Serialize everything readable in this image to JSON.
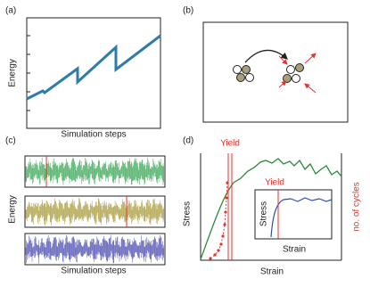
{
  "panels": [
    {
      "label": "(a)",
      "y_label": "Energy",
      "x_label": "Simulation steps"
    },
    {
      "label": "(b)"
    },
    {
      "label": "(c)",
      "y_label": "Energy",
      "x_label": "Simulation steps"
    },
    {
      "label": "(d)",
      "y_label": "Stress",
      "x_label": "Strain",
      "y2_label": "no. of cycles",
      "annotation": "Yield",
      "inset": {
        "y_label": "Stress",
        "x_label": "Strain",
        "annotation": "Yield"
      }
    }
  ]
}
